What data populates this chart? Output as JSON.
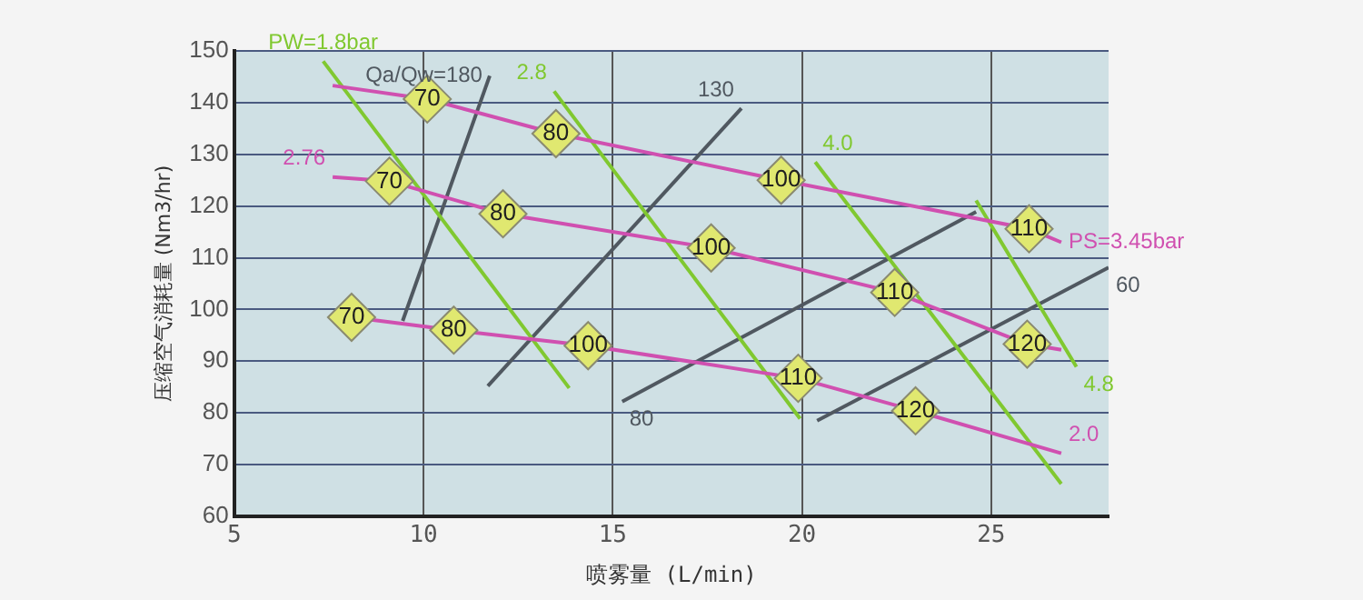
{
  "chart_data": {
    "type": "line",
    "xlabel": "喷雾量 (L/min)",
    "ylabel": "压缩空气消耗量 (Nm3/hr)",
    "xlim": [
      5,
      28.1
    ],
    "xticks": [
      5,
      10,
      15,
      20,
      25
    ],
    "ylim": [
      60,
      150
    ],
    "yticks": [
      60,
      70,
      80,
      90,
      100,
      110,
      120,
      130,
      140,
      150
    ],
    "grid": true,
    "legend": false,
    "series": [
      {
        "name": "PS=3.45bar",
        "color": "#d050b0",
        "marker": "diamond",
        "x": [
          7.6,
          10.1,
          13.5,
          19.45,
          26,
          26.85
        ],
        "values": [
          143.3,
          140.7,
          134,
          125,
          115.6,
          113
        ]
      },
      {
        "name": "2.76",
        "color": "#d050b0",
        "marker": "diamond",
        "x": [
          7.6,
          9.1,
          12.1,
          17.6,
          22.45,
          25.95,
          26.85
        ],
        "values": [
          125.6,
          124.8,
          118.5,
          111.9,
          103.3,
          93.3,
          92.2
        ]
      },
      {
        "name": "2.0",
        "color": "#d050b0",
        "marker": "diamond",
        "x": [
          8.1,
          10.8,
          14.35,
          19.9,
          23,
          26.85
        ],
        "values": [
          98.5,
          96,
          93,
          86.7,
          80.4,
          72.2
        ]
      },
      {
        "name": "PW=1.8bar",
        "color": "#80c830",
        "x": [
          13.85,
          7.35
        ],
        "values": [
          84.8,
          148
        ]
      },
      {
        "name": "2.8",
        "color": "#80c830",
        "x": [
          19.95,
          13.45
        ],
        "values": [
          78.9,
          142.2
        ]
      },
      {
        "name": "4.0",
        "color": "#80c830",
        "x": [
          26.85,
          20.35
        ],
        "values": [
          66.3,
          128.5
        ]
      },
      {
        "name": "4.8",
        "color": "#80c830",
        "x": [
          27.25,
          24.6
        ],
        "values": [
          88.9,
          121.1
        ]
      },
      {
        "name": "Qa/Qw=180",
        "color": "#505860",
        "x": [
          9.45,
          11.75
        ],
        "values": [
          97.8,
          145.2
        ]
      },
      {
        "name": "130",
        "color": "#505860",
        "x": [
          11.7,
          18.4
        ],
        "values": [
          85.2,
          138.9
        ]
      },
      {
        "name": "80",
        "color": "#505860",
        "x": [
          15.25,
          24.6
        ],
        "values": [
          82.2,
          118.9
        ]
      },
      {
        "name": "60",
        "color": "#505860",
        "x": [
          20.4,
          28.1
        ],
        "values": [
          78.5,
          108.1
        ]
      }
    ],
    "annotations": [
      {
        "text": "70",
        "x": 10.1,
        "y": 140.7
      },
      {
        "text": "80",
        "x": 13.5,
        "y": 134
      },
      {
        "text": "100",
        "x": 19.45,
        "y": 125
      },
      {
        "text": "110",
        "x": 26,
        "y": 115.6
      },
      {
        "text": "70",
        "x": 9.1,
        "y": 124.8
      },
      {
        "text": "80",
        "x": 12.1,
        "y": 118.5
      },
      {
        "text": "100",
        "x": 17.6,
        "y": 111.9
      },
      {
        "text": "110",
        "x": 22.45,
        "y": 103.3
      },
      {
        "text": "120",
        "x": 25.95,
        "y": 93.3
      },
      {
        "text": "70",
        "x": 8.1,
        "y": 98.5
      },
      {
        "text": "80",
        "x": 10.8,
        "y": 96
      },
      {
        "text": "100",
        "x": 14.35,
        "y": 93
      },
      {
        "text": "110",
        "x": 19.9,
        "y": 86.7
      },
      {
        "text": "120",
        "x": 23,
        "y": 80.4
      }
    ]
  }
}
